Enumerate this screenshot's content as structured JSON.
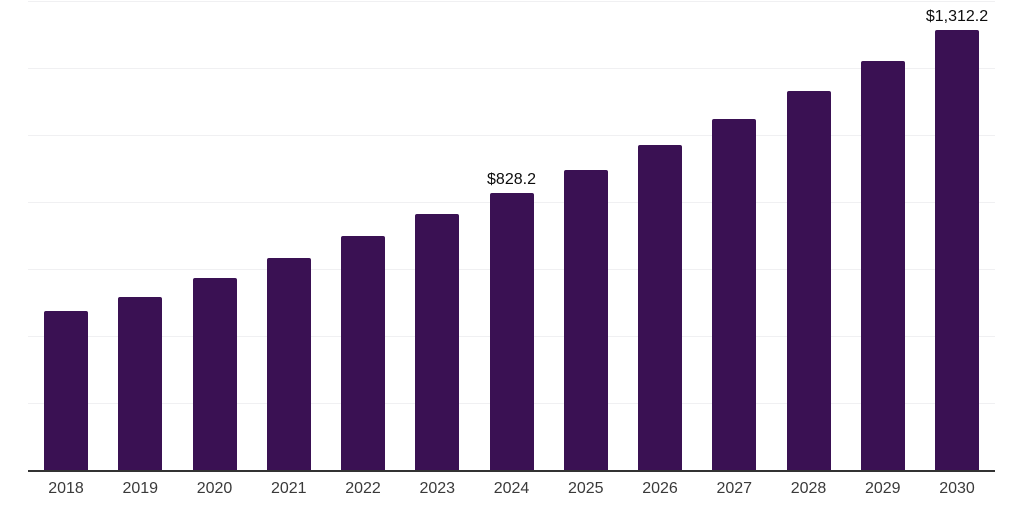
{
  "chart": {
    "colors": {
      "background": "#ffffff",
      "bar": "#3a1153",
      "axis_line": "#333333",
      "gridline": "#f0f0f2",
      "tick_label": "#3a3a3a",
      "data_label": "#0d0d0d"
    }
  },
  "chart_data": {
    "type": "bar",
    "title": "",
    "xlabel": "",
    "ylabel": "",
    "categories": [
      "2018",
      "2019",
      "2020",
      "2021",
      "2022",
      "2023",
      "2024",
      "2025",
      "2026",
      "2027",
      "2028",
      "2029",
      "2030"
    ],
    "values": [
      474,
      517,
      572,
      632,
      700,
      764,
      828.2,
      896,
      971,
      1047,
      1131,
      1220,
      1312.2
    ],
    "point_labels": [
      "",
      "",
      "",
      "",
      "",
      "",
      "$828.2",
      "",
      "",
      "",
      "",
      "",
      "$1,312.2"
    ],
    "ylim": [
      0,
      1400
    ],
    "grid_divisions": 7,
    "gridline_interval": 200,
    "grid": "horizontal",
    "legend": "none",
    "y_axis_tick_labels_visible": false
  }
}
